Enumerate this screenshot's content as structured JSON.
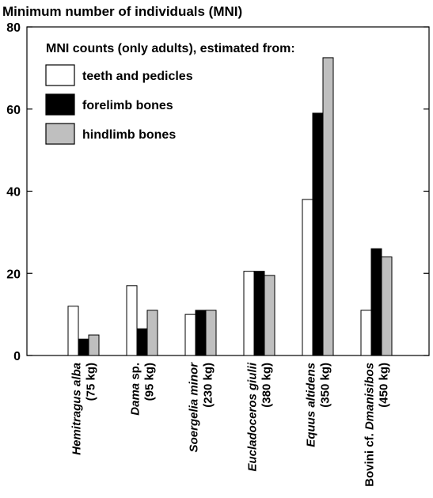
{
  "chart_data": {
    "type": "bar",
    "title": "Minimum number of individuals (MNI)",
    "legend_title": "MNI counts (only adults), estimated from:",
    "legend_position": "top-left",
    "ylim": [
      0,
      80
    ],
    "yticks": [
      0,
      20,
      40,
      60,
      80
    ],
    "grid": false,
    "categories": [
      {
        "name_parts": [
          {
            "text": "Hemitragus alba",
            "italic": true
          }
        ],
        "weight": "(75 kg)"
      },
      {
        "name_parts": [
          {
            "text": "Dama",
            "italic": true
          },
          {
            "text": " sp.",
            "italic": false
          }
        ],
        "weight": "(95 kg)"
      },
      {
        "name_parts": [
          {
            "text": "Soergelia minor",
            "italic": true
          }
        ],
        "weight": "(230 kg)"
      },
      {
        "name_parts": [
          {
            "text": "Eucladoceros giulii",
            "italic": true
          }
        ],
        "weight": "(380 kg)"
      },
      {
        "name_parts": [
          {
            "text": "Equus altidens",
            "italic": true
          }
        ],
        "weight": "(350 kg)"
      },
      {
        "name_parts": [
          {
            "text": "Bovini cf. ",
            "italic": false
          },
          {
            "text": "Dmanisibos",
            "italic": true
          }
        ],
        "weight": "(450 kg)"
      }
    ],
    "series": [
      {
        "name": "teeth and pedicles",
        "color": "#ffffff",
        "values": [
          12,
          17,
          10,
          20.5,
          38,
          11
        ]
      },
      {
        "name": "forelimb bones",
        "color": "#000000",
        "values": [
          4,
          6.5,
          11,
          20.5,
          59,
          26
        ]
      },
      {
        "name": "hindlimb bones",
        "color": "#bfbfbf",
        "values": [
          5,
          11,
          11,
          19.5,
          72.5,
          24
        ]
      }
    ]
  }
}
